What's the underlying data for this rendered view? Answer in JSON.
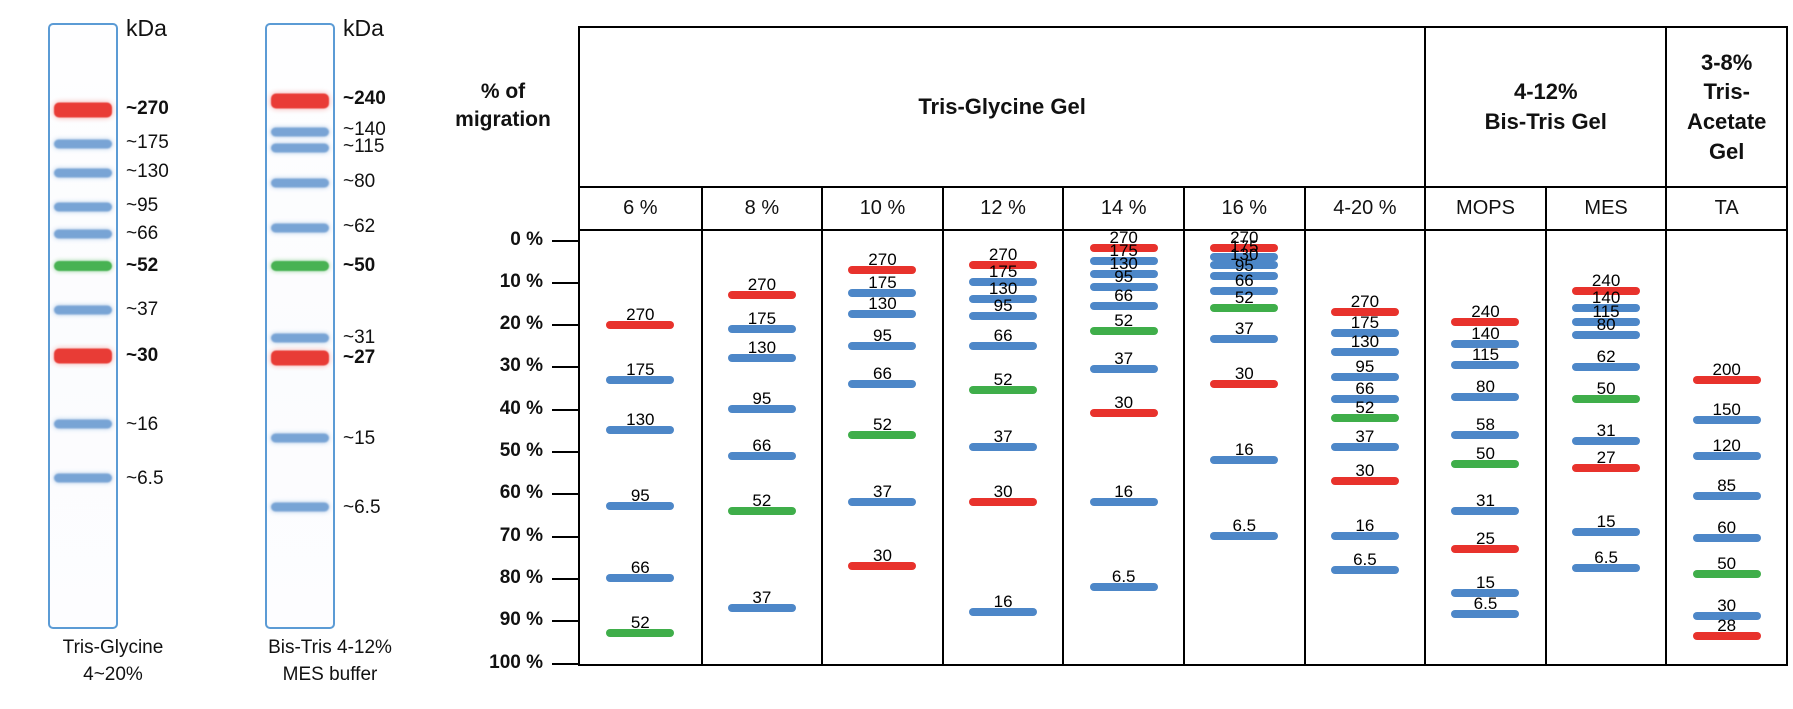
{
  "colors": {
    "blue": "#4d87c8",
    "red": "#e8322c",
    "green": "#3fae4a",
    "lane_border": "#5b9bd5",
    "table_border": "#000000"
  },
  "chart_data": {
    "type": "table",
    "y_axis": {
      "title": "% of\nmigration",
      "range": [
        0,
        100
      ],
      "ticks": [
        0,
        10,
        20,
        30,
        40,
        50,
        60,
        70,
        80,
        90,
        100
      ],
      "tick_labels": [
        "0 %",
        "10 %",
        "20 %",
        "30 %",
        "40 %",
        "50 %",
        "60 %",
        "70 %",
        "80 %",
        "90 %",
        "100 %"
      ]
    },
    "groups": [
      {
        "label": "Tris-Glycine Gel",
        "span": 7
      },
      {
        "label": "4-12%\nBis-Tris Gel",
        "span": 2
      },
      {
        "label": "3-8%\nTris-\nAcetate\nGel",
        "span": 1
      }
    ],
    "columns": [
      {
        "header": "6 %",
        "group": "Tris-Glycine Gel",
        "bands": [
          {
            "kda": "270",
            "migration_pct": 20,
            "color": "red"
          },
          {
            "kda": "175",
            "migration_pct": 33,
            "color": "blue"
          },
          {
            "kda": "130",
            "migration_pct": 45,
            "color": "blue"
          },
          {
            "kda": "95",
            "migration_pct": 63,
            "color": "blue"
          },
          {
            "kda": "66",
            "migration_pct": 80,
            "color": "blue"
          },
          {
            "kda": "52",
            "migration_pct": 93,
            "color": "green"
          }
        ]
      },
      {
        "header": "8 %",
        "group": "Tris-Glycine Gel",
        "bands": [
          {
            "kda": "270",
            "migration_pct": 13,
            "color": "red"
          },
          {
            "kda": "175",
            "migration_pct": 21,
            "color": "blue"
          },
          {
            "kda": "130",
            "migration_pct": 28,
            "color": "blue"
          },
          {
            "kda": "95",
            "migration_pct": 40,
            "color": "blue"
          },
          {
            "kda": "66",
            "migration_pct": 51,
            "color": "blue"
          },
          {
            "kda": "52",
            "migration_pct": 64,
            "color": "green"
          },
          {
            "kda": "37",
            "migration_pct": 87,
            "color": "blue"
          }
        ]
      },
      {
        "header": "10 %",
        "group": "Tris-Glycine Gel",
        "bands": [
          {
            "kda": "270",
            "migration_pct": 7,
            "color": "red"
          },
          {
            "kda": "175",
            "migration_pct": 12.5,
            "color": "blue"
          },
          {
            "kda": "130",
            "migration_pct": 17.5,
            "color": "blue"
          },
          {
            "kda": "95",
            "migration_pct": 25,
            "color": "blue"
          },
          {
            "kda": "66",
            "migration_pct": 34,
            "color": "blue"
          },
          {
            "kda": "52",
            "migration_pct": 46,
            "color": "green"
          },
          {
            "kda": "37",
            "migration_pct": 62,
            "color": "blue"
          },
          {
            "kda": "30",
            "migration_pct": 77,
            "color": "red"
          }
        ]
      },
      {
        "header": "12 %",
        "group": "Tris-Glycine Gel",
        "bands": [
          {
            "kda": "270",
            "migration_pct": 6,
            "color": "red"
          },
          {
            "kda": "175",
            "migration_pct": 10,
            "color": "blue"
          },
          {
            "kda": "130",
            "migration_pct": 14,
            "color": "blue"
          },
          {
            "kda": "95",
            "migration_pct": 18,
            "color": "blue"
          },
          {
            "kda": "66",
            "migration_pct": 25,
            "color": "blue"
          },
          {
            "kda": "52",
            "migration_pct": 35.5,
            "color": "green"
          },
          {
            "kda": "37",
            "migration_pct": 49,
            "color": "blue"
          },
          {
            "kda": "30",
            "migration_pct": 62,
            "color": "red"
          },
          {
            "kda": "16",
            "migration_pct": 88,
            "color": "blue"
          }
        ]
      },
      {
        "header": "14 %",
        "group": "Tris-Glycine Gel",
        "bands": [
          {
            "kda": "270",
            "migration_pct": 2,
            "color": "red"
          },
          {
            "kda": "175",
            "migration_pct": 5,
            "color": "blue"
          },
          {
            "kda": "130",
            "migration_pct": 8,
            "color": "blue"
          },
          {
            "kda": "95",
            "migration_pct": 11,
            "color": "blue"
          },
          {
            "kda": "66",
            "migration_pct": 15.5,
            "color": "blue"
          },
          {
            "kda": "52",
            "migration_pct": 21.5,
            "color": "green"
          },
          {
            "kda": "37",
            "migration_pct": 30.5,
            "color": "blue"
          },
          {
            "kda": "30",
            "migration_pct": 41,
            "color": "red"
          },
          {
            "kda": "16",
            "migration_pct": 62,
            "color": "blue"
          },
          {
            "kda": "6.5",
            "migration_pct": 82,
            "color": "blue"
          }
        ]
      },
      {
        "header": "16 %",
        "group": "Tris-Glycine Gel",
        "bands": [
          {
            "kda": "270",
            "migration_pct": 2,
            "color": "red"
          },
          {
            "kda": "175",
            "migration_pct": 4,
            "color": "blue"
          },
          {
            "kda": "130",
            "migration_pct": 6,
            "color": "blue"
          },
          {
            "kda": "95",
            "migration_pct": 8.5,
            "color": "blue"
          },
          {
            "kda": "66",
            "migration_pct": 12,
            "color": "blue"
          },
          {
            "kda": "52",
            "migration_pct": 16,
            "color": "green"
          },
          {
            "kda": "37",
            "migration_pct": 23.5,
            "color": "blue"
          },
          {
            "kda": "30",
            "migration_pct": 34,
            "color": "red"
          },
          {
            "kda": "16",
            "migration_pct": 52,
            "color": "blue"
          },
          {
            "kda": "6.5",
            "migration_pct": 70,
            "color": "blue"
          }
        ]
      },
      {
        "header": "4-20 %",
        "group": "Tris-Glycine Gel",
        "bands": [
          {
            "kda": "270",
            "migration_pct": 17,
            "color": "red"
          },
          {
            "kda": "175",
            "migration_pct": 22,
            "color": "blue"
          },
          {
            "kda": "130",
            "migration_pct": 26.5,
            "color": "blue"
          },
          {
            "kda": "95",
            "migration_pct": 32.5,
            "color": "blue"
          },
          {
            "kda": "66",
            "migration_pct": 37.5,
            "color": "blue"
          },
          {
            "kda": "52",
            "migration_pct": 42,
            "color": "green"
          },
          {
            "kda": "37",
            "migration_pct": 49,
            "color": "blue"
          },
          {
            "kda": "30",
            "migration_pct": 57,
            "color": "red"
          },
          {
            "kda": "16",
            "migration_pct": 70,
            "color": "blue"
          },
          {
            "kda": "6.5",
            "migration_pct": 78,
            "color": "blue"
          }
        ]
      },
      {
        "header": "MOPS",
        "group": "4-12% Bis-Tris Gel",
        "bands": [
          {
            "kda": "240",
            "migration_pct": 19.5,
            "color": "red"
          },
          {
            "kda": "140",
            "migration_pct": 24.5,
            "color": "blue"
          },
          {
            "kda": "115",
            "migration_pct": 29.5,
            "color": "blue"
          },
          {
            "kda": "80",
            "migration_pct": 37,
            "color": "blue"
          },
          {
            "kda": "58",
            "migration_pct": 46,
            "color": "blue"
          },
          {
            "kda": "50",
            "migration_pct": 53,
            "color": "green"
          },
          {
            "kda": "31",
            "migration_pct": 64,
            "color": "blue"
          },
          {
            "kda": "25",
            "migration_pct": 73,
            "color": "red"
          },
          {
            "kda": "15",
            "migration_pct": 83.5,
            "color": "blue"
          },
          {
            "kda": "6.5",
            "migration_pct": 88.5,
            "color": "blue"
          }
        ]
      },
      {
        "header": "MES",
        "group": "4-12% Bis-Tris Gel",
        "bands": [
          {
            "kda": "240",
            "migration_pct": 12,
            "color": "red"
          },
          {
            "kda": "140",
            "migration_pct": 16,
            "color": "blue"
          },
          {
            "kda": "115",
            "migration_pct": 19.5,
            "color": "blue"
          },
          {
            "kda": "80",
            "migration_pct": 22.5,
            "color": "blue"
          },
          {
            "kda": "62",
            "migration_pct": 30,
            "color": "blue"
          },
          {
            "kda": "50",
            "migration_pct": 37.5,
            "color": "green"
          },
          {
            "kda": "31",
            "migration_pct": 47.5,
            "color": "blue"
          },
          {
            "kda": "27",
            "migration_pct": 54,
            "color": "red"
          },
          {
            "kda": "15",
            "migration_pct": 69,
            "color": "blue"
          },
          {
            "kda": "6.5",
            "migration_pct": 77.5,
            "color": "blue"
          }
        ]
      },
      {
        "header": "TA",
        "group": "3-8% Tris-Acetate Gel",
        "bands": [
          {
            "kda": "200",
            "migration_pct": 33,
            "color": "red"
          },
          {
            "kda": "150",
            "migration_pct": 42.5,
            "color": "blue"
          },
          {
            "kda": "120",
            "migration_pct": 51,
            "color": "blue"
          },
          {
            "kda": "85",
            "migration_pct": 60.5,
            "color": "blue"
          },
          {
            "kda": "60",
            "migration_pct": 70.5,
            "color": "blue"
          },
          {
            "kda": "50",
            "migration_pct": 79,
            "color": "green"
          },
          {
            "kda": "30",
            "migration_pct": 89,
            "color": "blue"
          },
          {
            "kda": "28",
            "migration_pct": 93.5,
            "color": "red"
          }
        ]
      }
    ],
    "lanes": [
      {
        "unit": "kDa",
        "caption": "Tris-Glycine\n4~20%",
        "bands": [
          {
            "label": "~270",
            "pos_pct": 14.2,
            "color": "red",
            "bold": true
          },
          {
            "label": "~175",
            "pos_pct": 19.8,
            "color": "blue",
            "bold": false
          },
          {
            "label": "~130",
            "pos_pct": 24.6,
            "color": "blue",
            "bold": false
          },
          {
            "label": "~95",
            "pos_pct": 30.2,
            "color": "blue",
            "bold": false
          },
          {
            "label": "~66",
            "pos_pct": 34.8,
            "color": "blue",
            "bold": false
          },
          {
            "label": "~52",
            "pos_pct": 40.1,
            "color": "green",
            "bold": true
          },
          {
            "label": "~37",
            "pos_pct": 47.4,
            "color": "blue",
            "bold": false
          },
          {
            "label": "~30",
            "pos_pct": 55.0,
            "color": "red",
            "bold": true
          },
          {
            "label": "~16",
            "pos_pct": 66.3,
            "color": "blue",
            "bold": false
          },
          {
            "label": "~6.5",
            "pos_pct": 75.2,
            "color": "blue",
            "bold": false
          }
        ]
      },
      {
        "unit": "kDa",
        "caption": "Bis-Tris 4-12%\nMES buffer",
        "bands": [
          {
            "label": "~240",
            "pos_pct": 12.6,
            "color": "red",
            "bold": true
          },
          {
            "label": "~140",
            "pos_pct": 17.7,
            "color": "blue",
            "bold": false
          },
          {
            "label": "~115",
            "pos_pct": 20.5,
            "color": "blue",
            "bold": false
          },
          {
            "label": "~80",
            "pos_pct": 26.2,
            "color": "blue",
            "bold": false
          },
          {
            "label": "~62",
            "pos_pct": 33.7,
            "color": "blue",
            "bold": false
          },
          {
            "label": "~50",
            "pos_pct": 40.1,
            "color": "green",
            "bold": true
          },
          {
            "label": "~31",
            "pos_pct": 52.0,
            "color": "blue",
            "bold": false
          },
          {
            "label": "~27",
            "pos_pct": 55.3,
            "color": "red",
            "bold": true
          },
          {
            "label": "~15",
            "pos_pct": 68.6,
            "color": "blue",
            "bold": false
          },
          {
            "label": "~6.5",
            "pos_pct": 80.0,
            "color": "blue",
            "bold": false
          }
        ]
      }
    ]
  }
}
